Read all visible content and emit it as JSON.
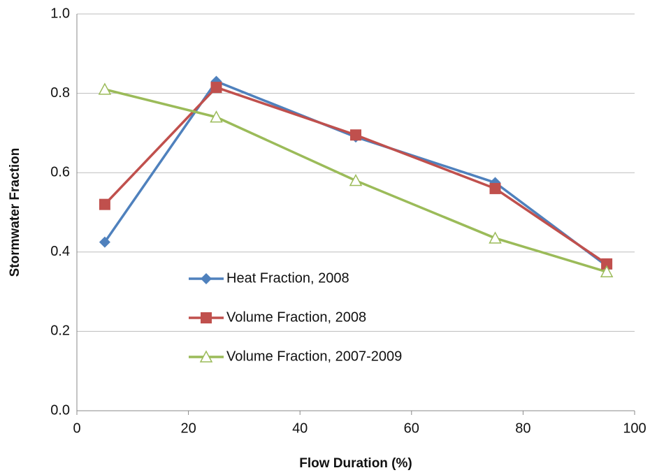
{
  "chart_data": {
    "type": "line",
    "x_label": "Flow Duration (%)",
    "y_label": "Stormwater Fraction",
    "x": [
      5,
      25,
      50,
      75,
      95
    ],
    "series": [
      {
        "name": "Heat Fraction, 2008",
        "color": "#4f81bd",
        "marker": "diamond",
        "values": [
          0.425,
          0.83,
          0.69,
          0.575,
          0.365
        ]
      },
      {
        "name": "Volume Fraction, 2008",
        "color": "#c0504d",
        "marker": "square",
        "values": [
          0.52,
          0.815,
          0.695,
          0.56,
          0.37
        ]
      },
      {
        "name": "Volume Fraction, 2007-2009",
        "color": "#9bbb59",
        "marker": "triangle-open",
        "values": [
          0.81,
          0.74,
          0.58,
          0.435,
          0.35
        ]
      }
    ],
    "xlim": [
      0,
      100
    ],
    "xticks": [
      0,
      20,
      40,
      60,
      80,
      100
    ],
    "ylim": [
      0,
      1
    ],
    "yticks": [
      {
        "value": 0,
        "label": "0.0"
      },
      0.2,
      0.4,
      0.6,
      0.8,
      {
        "value": 1,
        "label": "1.0"
      }
    ],
    "grid": true,
    "legend": "lower-left"
  }
}
